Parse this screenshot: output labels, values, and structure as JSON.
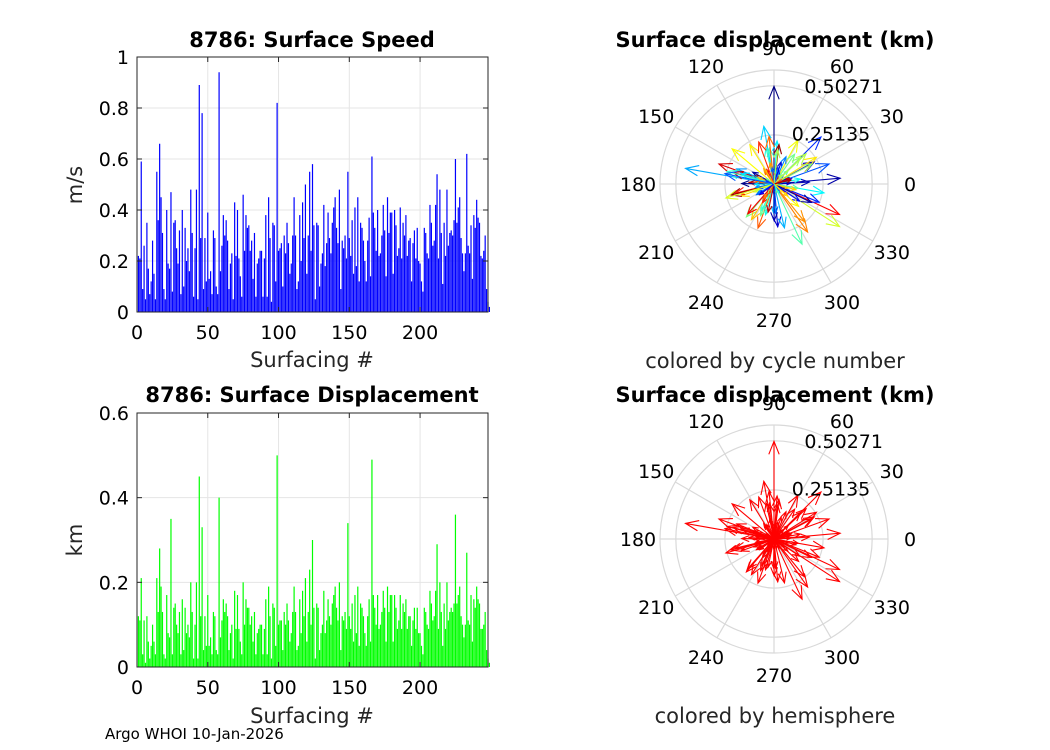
{
  "footer": "Argo WHOI 10-Jan-2026",
  "chart_data": [
    {
      "type": "bar",
      "title": "8786: Surface Speed",
      "xlabel": "Surfacing #",
      "ylabel": "m/s",
      "xlim": [
        0,
        248
      ],
      "ylim": [
        0,
        1
      ],
      "xticks": [
        "0",
        "50",
        "100",
        "150",
        "200"
      ],
      "xtick_values": [
        0,
        50,
        100,
        150,
        200
      ],
      "yticks": [
        "0",
        "0.2",
        "0.4",
        "0.6",
        "0.8",
        "1"
      ],
      "ytick_values": [
        0,
        0.2,
        0.4,
        0.6,
        0.8,
        1
      ],
      "color": "#0000ff",
      "values": [
        0.22,
        0.21,
        0.59,
        0.09,
        0.26,
        0.05,
        0.35,
        0.17,
        0.07,
        0.12,
        0.28,
        0.15,
        0.05,
        0.55,
        0.36,
        0.66,
        0.45,
        0.31,
        0.09,
        0.05,
        0.4,
        0.19,
        0.17,
        0.47,
        0.08,
        0.35,
        0.36,
        0.25,
        0.19,
        0.32,
        0.07,
        0.4,
        0.1,
        0.33,
        0.2,
        0.25,
        0.16,
        0.48,
        0.31,
        0.06,
        0.25,
        0.48,
        0.05,
        0.89,
        0.29,
        0.78,
        0.09,
        0.29,
        0.12,
        0.39,
        0.13,
        0.16,
        0.07,
        0.32,
        0.29,
        0.1,
        0.07,
        0.94,
        0.16,
        0.26,
        0.38,
        0.3,
        0.36,
        0.28,
        0.09,
        0.19,
        0.23,
        0.05,
        0.43,
        0.22,
        0.4,
        0.21,
        0.14,
        0.06,
        0.46,
        0.24,
        0.38,
        0.33,
        0.34,
        0.24,
        0.28,
        0.13,
        0.31,
        0.06,
        0.19,
        0.21,
        0.24,
        0.24,
        0.06,
        0.21,
        0.38,
        0.06,
        0.45,
        0.29,
        0.04,
        0.35,
        0.34,
        0.12,
        0.82,
        0.24,
        0.25,
        0.27,
        0.1,
        0.3,
        0.23,
        0.35,
        0.27,
        0.15,
        0.19,
        0.3,
        0.45,
        0.3,
        0.09,
        0.12,
        0.38,
        0.2,
        0.43,
        0.29,
        0.5,
        0.15,
        0.3,
        0.55,
        0.24,
        0.58,
        0.34,
        0.05,
        0.35,
        0.34,
        0.1,
        0.19,
        0.23,
        0.42,
        0.18,
        0.27,
        0.39,
        0.29,
        0.23,
        0.35,
        0.41,
        0.45,
        0.33,
        0.27,
        0.48,
        0.09,
        0.28,
        0.25,
        0.3,
        0.21,
        0.55,
        0.29,
        0.22,
        0.36,
        0.15,
        0.41,
        0.18,
        0.45,
        0.12,
        0.35,
        0.33,
        0.28,
        0.2,
        0.12,
        0.28,
        0.37,
        0.14,
        0.61,
        0.39,
        0.33,
        0.24,
        0.4,
        0.22,
        0.23,
        0.3,
        0.42,
        0.32,
        0.14,
        0.45,
        0.31,
        0.39,
        0.39,
        0.15,
        0.4,
        0.34,
        0.22,
        0.25,
        0.41,
        0.21,
        0.35,
        0.3,
        0.38,
        0.22,
        0.28,
        0.29,
        0.12,
        0.27,
        0.32,
        0.21,
        0.33,
        0.2,
        0.19,
        0.12,
        0.08,
        0.33,
        0.31,
        0.23,
        0.21,
        0.42,
        0.35,
        0.26,
        0.28,
        0.42,
        0.54,
        0.21,
        0.48,
        0.31,
        0.11,
        0.35,
        0.22,
        0.48,
        0.26,
        0.31,
        0.32,
        0.3,
        0.36,
        0.6,
        0.35,
        0.41,
        0.45,
        0.29,
        0.23,
        0.16,
        0.23,
        0.62,
        0.26,
        0.23,
        0.34,
        0.13,
        0.38,
        0.33,
        0.44,
        0.37,
        0.35,
        0.22,
        0.21,
        0.24,
        0.3,
        0.09,
        0.04,
        0.02
      ]
    },
    {
      "type": "polar-arrows",
      "title": "Surface displacement (km)",
      "subtitle": "colored by cycle number",
      "radial_ticks": [
        "0.25135",
        "0.50271"
      ],
      "radial_tick_values": [
        0.25135,
        0.50271
      ],
      "rmax": 0.5837,
      "angle_labels": [
        "0",
        "30",
        "60",
        "90",
        "120",
        "150",
        "180",
        "210",
        "240",
        "270",
        "300",
        "330"
      ],
      "coloring": "cycle-number",
      "vectors": [
        {
          "angle": 90,
          "r": 0.5
        },
        {
          "angle": 170,
          "r": 0.46
        },
        {
          "angle": 327,
          "r": 0.4
        },
        {
          "angle": 335,
          "r": 0.37
        },
        {
          "angle": 45,
          "r": 0.34
        },
        {
          "angle": 295,
          "r": 0.34
        },
        {
          "angle": 305,
          "r": 0.3
        },
        {
          "angle": 5,
          "r": 0.34
        },
        {
          "angle": 100,
          "r": 0.3
        },
        {
          "angle": 140,
          "r": 0.28
        },
        {
          "angle": 160,
          "r": 0.3
        },
        {
          "angle": 20,
          "r": 0.3
        },
        {
          "angle": 230,
          "r": 0.22
        },
        {
          "angle": 250,
          "r": 0.24
        },
        {
          "angle": 275,
          "r": 0.22
        },
        {
          "angle": 350,
          "r": 0.26
        },
        {
          "angle": 200,
          "r": 0.18
        }
      ]
    },
    {
      "type": "bar",
      "title": "8786: Surface Displacement",
      "xlabel": "Surfacing #",
      "ylabel": "km",
      "xlim": [
        0,
        248
      ],
      "ylim": [
        0,
        0.6
      ],
      "xticks": [
        "0",
        "50",
        "100",
        "150",
        "200"
      ],
      "xtick_values": [
        0,
        50,
        100,
        150,
        200
      ],
      "yticks": [
        "0",
        "0.2",
        "0.4",
        "0.6"
      ],
      "ytick_values": [
        0,
        0.2,
        0.4,
        0.6
      ],
      "color": "#00ff00",
      "values": [
        0.12,
        0.11,
        0.21,
        0.03,
        0.11,
        0.01,
        0.12,
        0.06,
        0.02,
        0.05,
        0.1,
        0.06,
        0.03,
        0.21,
        0.13,
        0.28,
        0.19,
        0.13,
        0.03,
        0.02,
        0.17,
        0.08,
        0.07,
        0.35,
        0.03,
        0.14,
        0.15,
        0.1,
        0.08,
        0.13,
        0.03,
        0.16,
        0.04,
        0.14,
        0.08,
        0.1,
        0.07,
        0.2,
        0.13,
        0.02,
        0.1,
        0.2,
        0.02,
        0.45,
        0.12,
        0.33,
        0.04,
        0.12,
        0.05,
        0.17,
        0.05,
        0.07,
        0.03,
        0.13,
        0.12,
        0.04,
        0.03,
        0.4,
        0.07,
        0.11,
        0.16,
        0.13,
        0.15,
        0.12,
        0.04,
        0.08,
        0.1,
        0.02,
        0.18,
        0.09,
        0.17,
        0.09,
        0.06,
        0.03,
        0.2,
        0.1,
        0.16,
        0.14,
        0.14,
        0.1,
        0.12,
        0.06,
        0.13,
        0.03,
        0.08,
        0.09,
        0.1,
        0.1,
        0.03,
        0.09,
        0.16,
        0.03,
        0.19,
        0.12,
        0.02,
        0.15,
        0.14,
        0.05,
        0.5,
        0.1,
        0.11,
        0.11,
        0.04,
        0.13,
        0.1,
        0.15,
        0.11,
        0.06,
        0.08,
        0.13,
        0.19,
        0.13,
        0.04,
        0.05,
        0.16,
        0.08,
        0.18,
        0.12,
        0.21,
        0.06,
        0.13,
        0.23,
        0.1,
        0.3,
        0.14,
        0.02,
        0.15,
        0.14,
        0.04,
        0.08,
        0.1,
        0.18,
        0.08,
        0.11,
        0.16,
        0.12,
        0.1,
        0.15,
        0.17,
        0.19,
        0.14,
        0.11,
        0.2,
        0.04,
        0.12,
        0.11,
        0.13,
        0.09,
        0.34,
        0.12,
        0.09,
        0.15,
        0.06,
        0.17,
        0.08,
        0.19,
        0.05,
        0.15,
        0.14,
        0.12,
        0.08,
        0.05,
        0.12,
        0.16,
        0.06,
        0.49,
        0.17,
        0.14,
        0.1,
        0.17,
        0.09,
        0.1,
        0.13,
        0.18,
        0.14,
        0.06,
        0.19,
        0.13,
        0.17,
        0.17,
        0.06,
        0.17,
        0.14,
        0.09,
        0.11,
        0.17,
        0.09,
        0.15,
        0.13,
        0.16,
        0.09,
        0.12,
        0.12,
        0.05,
        0.11,
        0.14,
        0.09,
        0.14,
        0.08,
        0.08,
        0.05,
        0.03,
        0.14,
        0.13,
        0.1,
        0.09,
        0.18,
        0.15,
        0.11,
        0.12,
        0.18,
        0.29,
        0.09,
        0.2,
        0.13,
        0.05,
        0.15,
        0.09,
        0.2,
        0.11,
        0.13,
        0.14,
        0.13,
        0.15,
        0.36,
        0.15,
        0.17,
        0.19,
        0.12,
        0.1,
        0.07,
        0.1,
        0.27,
        0.11,
        0.1,
        0.17,
        0.06,
        0.16,
        0.14,
        0.19,
        0.16,
        0.15,
        0.09,
        0.09,
        0.1,
        0.13,
        0.04,
        0.02,
        0.01
      ]
    },
    {
      "type": "polar-arrows",
      "title": "Surface displacement (km)",
      "subtitle": "colored by hemisphere",
      "radial_ticks": [
        "0.25135",
        "0.50271"
      ],
      "radial_tick_values": [
        0.25135,
        0.50271
      ],
      "rmax": 0.5837,
      "angle_labels": [
        "0",
        "30",
        "60",
        "90",
        "120",
        "150",
        "180",
        "210",
        "240",
        "270",
        "300",
        "330"
      ],
      "coloring": "hemisphere",
      "color": "#ff0000",
      "vectors": [
        {
          "angle": 90,
          "r": 0.5
        },
        {
          "angle": 170,
          "r": 0.46
        },
        {
          "angle": 327,
          "r": 0.4
        },
        {
          "angle": 335,
          "r": 0.37
        },
        {
          "angle": 45,
          "r": 0.34
        },
        {
          "angle": 295,
          "r": 0.34
        },
        {
          "angle": 305,
          "r": 0.3
        },
        {
          "angle": 5,
          "r": 0.34
        },
        {
          "angle": 100,
          "r": 0.3
        },
        {
          "angle": 140,
          "r": 0.28
        },
        {
          "angle": 160,
          "r": 0.3
        },
        {
          "angle": 20,
          "r": 0.3
        },
        {
          "angle": 230,
          "r": 0.22
        },
        {
          "angle": 250,
          "r": 0.24
        },
        {
          "angle": 275,
          "r": 0.22
        },
        {
          "angle": 350,
          "r": 0.26
        },
        {
          "angle": 200,
          "r": 0.18
        }
      ]
    }
  ]
}
